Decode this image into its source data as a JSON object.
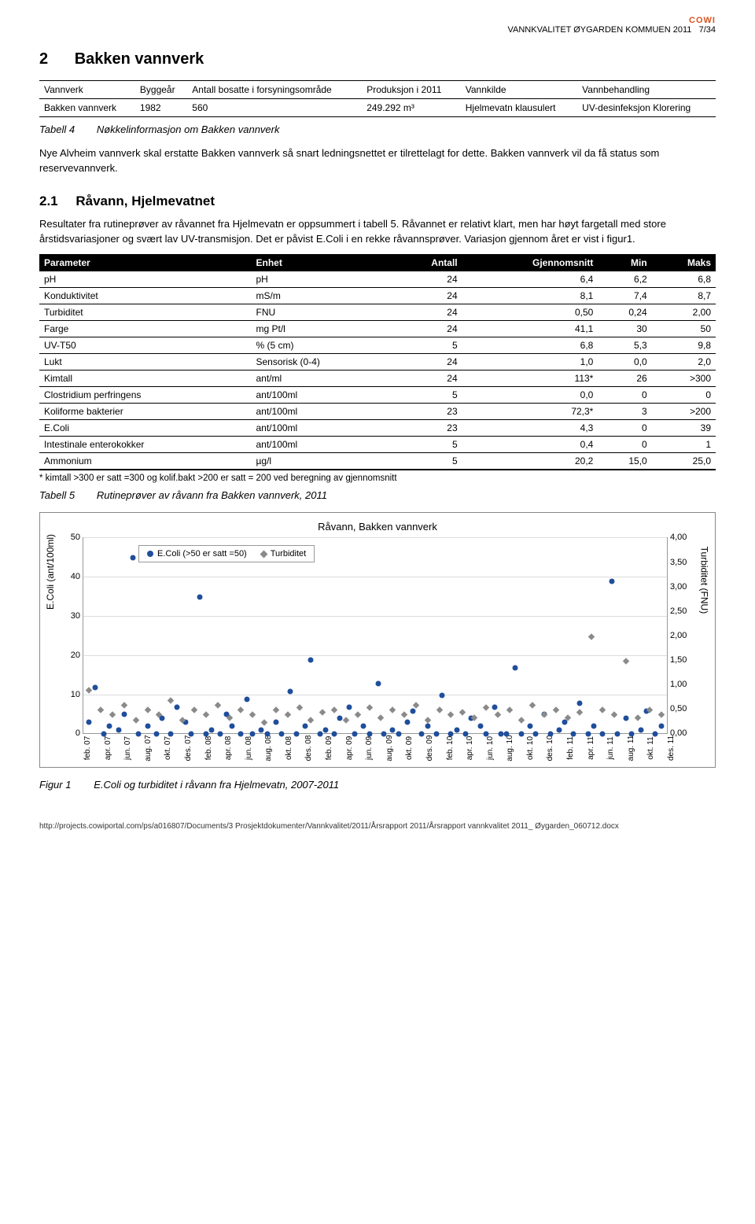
{
  "header": {
    "cowi": "COWI",
    "title": "VANNKVALITET ØYGARDEN KOMMUEN 2011",
    "page": "7/34"
  },
  "section": {
    "num": "2",
    "title": "Bakken vannverk"
  },
  "info_table": {
    "columns": [
      "Vannverk",
      "Byggeår",
      "Antall bosatte i forsyningsområde",
      "Produksjon i 2011",
      "Vannkilde",
      "Vannbehandling"
    ],
    "row": [
      "Bakken vannverk",
      "1982",
      "560",
      "249.292 m³",
      "Hjelmevatn klausulert",
      "UV-desinfeksjon Klorering"
    ]
  },
  "tabell4": {
    "label": "Tabell 4",
    "caption": "Nøkkelinformasjon om Bakken vannverk"
  },
  "para1": "Nye Alvheim vannverk skal erstatte Bakken vannverk så snart ledningsnettet er tilrettelagt for dette. Bakken vannverk vil da få status som reservevannverk.",
  "subsection": {
    "num": "2.1",
    "title": "Råvann, Hjelmevatnet"
  },
  "para2": "Resultater fra rutineprøver av råvannet fra Hjelmevatn er oppsummert i tabell 5. Råvannet er relativt klart, men har høyt fargetall med store årstidsvariasjoner og svært lav UV-transmisjon. Det er påvist E.Coli i en rekke råvannsprøver. Variasjon gjennom året er vist i figur1.",
  "data_table": {
    "columns": [
      "Parameter",
      "Enhet",
      "Antall",
      "Gjennomsnitt",
      "Min",
      "Maks"
    ],
    "rows": [
      [
        "pH",
        "pH",
        "24",
        "6,4",
        "6,2",
        "6,8"
      ],
      [
        "Konduktivitet",
        "mS/m",
        "24",
        "8,1",
        "7,4",
        "8,7"
      ],
      [
        "Turbiditet",
        "FNU",
        "24",
        "0,50",
        "0,24",
        "2,00"
      ],
      [
        "Farge",
        "mg Pt/l",
        "24",
        "41,1",
        "30",
        "50"
      ],
      [
        "UV-T50",
        "% (5 cm)",
        "5",
        "6,8",
        "5,3",
        "9,8"
      ],
      [
        "Lukt",
        "Sensorisk (0-4)",
        "24",
        "1,0",
        "0,0",
        "2,0"
      ],
      [
        "Kimtall",
        "ant/ml",
        "24",
        "113*",
        "26",
        ">300"
      ],
      [
        "Clostridium perfringens",
        "ant/100ml",
        "5",
        "0,0",
        "0",
        "0"
      ],
      [
        "Koliforme bakterier",
        "ant/100ml",
        "23",
        "72,3*",
        "3",
        ">200"
      ],
      [
        "E.Coli",
        "ant/100ml",
        "23",
        "4,3",
        "0",
        "39"
      ],
      [
        "Intestinale enterokokker",
        "ant/100ml",
        "5",
        "0,4",
        "0",
        "1"
      ],
      [
        "Ammonium",
        "µg/l",
        "5",
        "20,2",
        "15,0",
        "25,0"
      ]
    ],
    "footnote": "* kimtall >300 er satt =300 og kolif.bakt >200 er satt = 200 ved beregning av gjennomsnitt"
  },
  "tabell5": {
    "label": "Tabell 5",
    "caption": "Rutineprøver av råvann fra Bakken vannverk, 2011"
  },
  "chart": {
    "title": "Råvann, Bakken vannverk",
    "ylabel": "E.Coli (ant/100ml)",
    "y2label": "Turbiditet (FNU)",
    "ylim": [
      0,
      50
    ],
    "ytick_step": 10,
    "y2lim": [
      0,
      4.0
    ],
    "y2tick_step": 0.5,
    "y2ticks": [
      "0,00",
      "0,50",
      "1,00",
      "1,50",
      "2,00",
      "2,50",
      "3,00",
      "3,50",
      "4,00"
    ],
    "xticks": [
      "feb. 07",
      "apr. 07",
      "jun. 07",
      "aug. 07",
      "okt. 07",
      "des. 07",
      "feb. 08",
      "apr. 08",
      "jun. 08",
      "aug. 08",
      "okt. 08",
      "des. 08",
      "feb. 09",
      "apr. 09",
      "jun. 09",
      "aug. 09",
      "okt. 09",
      "des. 09",
      "feb. 10",
      "apr. 10",
      "jun. 10",
      "aug. 10",
      "okt. 10",
      "des. 10",
      "feb. 11",
      "apr. 11",
      "jun. 11",
      "aug. 11",
      "okt. 11",
      "des. 11"
    ],
    "legend": {
      "s1": {
        "label": "E.Coli (>50 er satt =50)",
        "color": "#1f4e9c",
        "type": "circle"
      },
      "s2": {
        "label": "Turbiditet",
        "color": "#8a8a8a",
        "type": "diamond"
      }
    },
    "colors": {
      "ecoli": "#1f4e9c",
      "turb": "#8a8a8a",
      "grid": "#dddddd",
      "axis": "#999999",
      "bg": "#ffffff"
    },
    "ecoli_points": [
      {
        "x": 0.01,
        "y": 3
      },
      {
        "x": 0.02,
        "y": 12
      },
      {
        "x": 0.035,
        "y": 0
      },
      {
        "x": 0.045,
        "y": 2
      },
      {
        "x": 0.06,
        "y": 1
      },
      {
        "x": 0.07,
        "y": 5
      },
      {
        "x": 0.085,
        "y": 45
      },
      {
        "x": 0.095,
        "y": 0
      },
      {
        "x": 0.11,
        "y": 2
      },
      {
        "x": 0.125,
        "y": 0
      },
      {
        "x": 0.135,
        "y": 4
      },
      {
        "x": 0.15,
        "y": 0
      },
      {
        "x": 0.16,
        "y": 7
      },
      {
        "x": 0.175,
        "y": 3
      },
      {
        "x": 0.185,
        "y": 0
      },
      {
        "x": 0.2,
        "y": 35
      },
      {
        "x": 0.21,
        "y": 0
      },
      {
        "x": 0.22,
        "y": 1
      },
      {
        "x": 0.235,
        "y": 0
      },
      {
        "x": 0.245,
        "y": 5
      },
      {
        "x": 0.255,
        "y": 2
      },
      {
        "x": 0.27,
        "y": 0
      },
      {
        "x": 0.28,
        "y": 9
      },
      {
        "x": 0.29,
        "y": 0
      },
      {
        "x": 0.305,
        "y": 1
      },
      {
        "x": 0.315,
        "y": 0
      },
      {
        "x": 0.33,
        "y": 3
      },
      {
        "x": 0.34,
        "y": 0
      },
      {
        "x": 0.355,
        "y": 11
      },
      {
        "x": 0.365,
        "y": 0
      },
      {
        "x": 0.38,
        "y": 2
      },
      {
        "x": 0.39,
        "y": 19
      },
      {
        "x": 0.405,
        "y": 0
      },
      {
        "x": 0.415,
        "y": 1
      },
      {
        "x": 0.43,
        "y": 0
      },
      {
        "x": 0.44,
        "y": 4
      },
      {
        "x": 0.455,
        "y": 7
      },
      {
        "x": 0.465,
        "y": 0
      },
      {
        "x": 0.48,
        "y": 2
      },
      {
        "x": 0.49,
        "y": 0
      },
      {
        "x": 0.505,
        "y": 13
      },
      {
        "x": 0.515,
        "y": 0
      },
      {
        "x": 0.53,
        "y": 1
      },
      {
        "x": 0.54,
        "y": 0
      },
      {
        "x": 0.555,
        "y": 3
      },
      {
        "x": 0.565,
        "y": 6
      },
      {
        "x": 0.58,
        "y": 0
      },
      {
        "x": 0.59,
        "y": 2
      },
      {
        "x": 0.605,
        "y": 0
      },
      {
        "x": 0.615,
        "y": 10
      },
      {
        "x": 0.63,
        "y": 0
      },
      {
        "x": 0.64,
        "y": 1
      },
      {
        "x": 0.655,
        "y": 0
      },
      {
        "x": 0.665,
        "y": 4
      },
      {
        "x": 0.68,
        "y": 2
      },
      {
        "x": 0.69,
        "y": 0
      },
      {
        "x": 0.705,
        "y": 7
      },
      {
        "x": 0.715,
        "y": 0
      },
      {
        "x": 0.725,
        "y": 0
      },
      {
        "x": 0.74,
        "y": 17
      },
      {
        "x": 0.75,
        "y": 0
      },
      {
        "x": 0.765,
        "y": 2
      },
      {
        "x": 0.775,
        "y": 0
      },
      {
        "x": 0.79,
        "y": 5
      },
      {
        "x": 0.8,
        "y": 0
      },
      {
        "x": 0.815,
        "y": 1
      },
      {
        "x": 0.825,
        "y": 3
      },
      {
        "x": 0.84,
        "y": 0
      },
      {
        "x": 0.85,
        "y": 8
      },
      {
        "x": 0.865,
        "y": 0
      },
      {
        "x": 0.875,
        "y": 2
      },
      {
        "x": 0.89,
        "y": 0
      },
      {
        "x": 0.905,
        "y": 39
      },
      {
        "x": 0.915,
        "y": 0
      },
      {
        "x": 0.93,
        "y": 4
      },
      {
        "x": 0.94,
        "y": 0
      },
      {
        "x": 0.955,
        "y": 1
      },
      {
        "x": 0.965,
        "y": 6
      },
      {
        "x": 0.98,
        "y": 0
      },
      {
        "x": 0.99,
        "y": 2
      }
    ],
    "turb_points": [
      {
        "x": 0.01,
        "y": 0.9
      },
      {
        "x": 0.03,
        "y": 0.5
      },
      {
        "x": 0.05,
        "y": 0.4
      },
      {
        "x": 0.07,
        "y": 0.6
      },
      {
        "x": 0.09,
        "y": 0.3
      },
      {
        "x": 0.11,
        "y": 0.5
      },
      {
        "x": 0.13,
        "y": 0.4
      },
      {
        "x": 0.15,
        "y": 0.7
      },
      {
        "x": 0.17,
        "y": 0.3
      },
      {
        "x": 0.19,
        "y": 0.5
      },
      {
        "x": 0.21,
        "y": 0.4
      },
      {
        "x": 0.23,
        "y": 0.6
      },
      {
        "x": 0.25,
        "y": 0.35
      },
      {
        "x": 0.27,
        "y": 0.5
      },
      {
        "x": 0.29,
        "y": 0.4
      },
      {
        "x": 0.31,
        "y": 0.25
      },
      {
        "x": 0.33,
        "y": 0.5
      },
      {
        "x": 0.35,
        "y": 0.4
      },
      {
        "x": 0.37,
        "y": 0.55
      },
      {
        "x": 0.39,
        "y": 0.3
      },
      {
        "x": 0.41,
        "y": 0.45
      },
      {
        "x": 0.43,
        "y": 0.5
      },
      {
        "x": 0.45,
        "y": 0.3
      },
      {
        "x": 0.47,
        "y": 0.4
      },
      {
        "x": 0.49,
        "y": 0.55
      },
      {
        "x": 0.51,
        "y": 0.35
      },
      {
        "x": 0.53,
        "y": 0.5
      },
      {
        "x": 0.55,
        "y": 0.4
      },
      {
        "x": 0.57,
        "y": 0.6
      },
      {
        "x": 0.59,
        "y": 0.3
      },
      {
        "x": 0.61,
        "y": 0.5
      },
      {
        "x": 0.63,
        "y": 0.4
      },
      {
        "x": 0.65,
        "y": 0.45
      },
      {
        "x": 0.67,
        "y": 0.35
      },
      {
        "x": 0.69,
        "y": 0.55
      },
      {
        "x": 0.71,
        "y": 0.4
      },
      {
        "x": 0.73,
        "y": 0.5
      },
      {
        "x": 0.75,
        "y": 0.3
      },
      {
        "x": 0.77,
        "y": 0.6
      },
      {
        "x": 0.79,
        "y": 0.4
      },
      {
        "x": 0.81,
        "y": 0.5
      },
      {
        "x": 0.83,
        "y": 0.35
      },
      {
        "x": 0.85,
        "y": 0.45
      },
      {
        "x": 0.87,
        "y": 2.0
      },
      {
        "x": 0.89,
        "y": 0.5
      },
      {
        "x": 0.91,
        "y": 0.4
      },
      {
        "x": 0.93,
        "y": 1.5
      },
      {
        "x": 0.95,
        "y": 0.35
      },
      {
        "x": 0.97,
        "y": 0.5
      },
      {
        "x": 0.99,
        "y": 0.4
      }
    ]
  },
  "figur1": {
    "label": "Figur 1",
    "caption": "E.Coli og turbiditet i råvann fra Hjelmevatn, 2007-2011"
  },
  "footer_url": "http://projects.cowiportal.com/ps/a016807/Documents/3 Prosjektdokumenter/Vannkvalitet/2011/Årsrapport 2011/Årsrapport vannkvalitet 2011_ Øygarden_060712.docx"
}
